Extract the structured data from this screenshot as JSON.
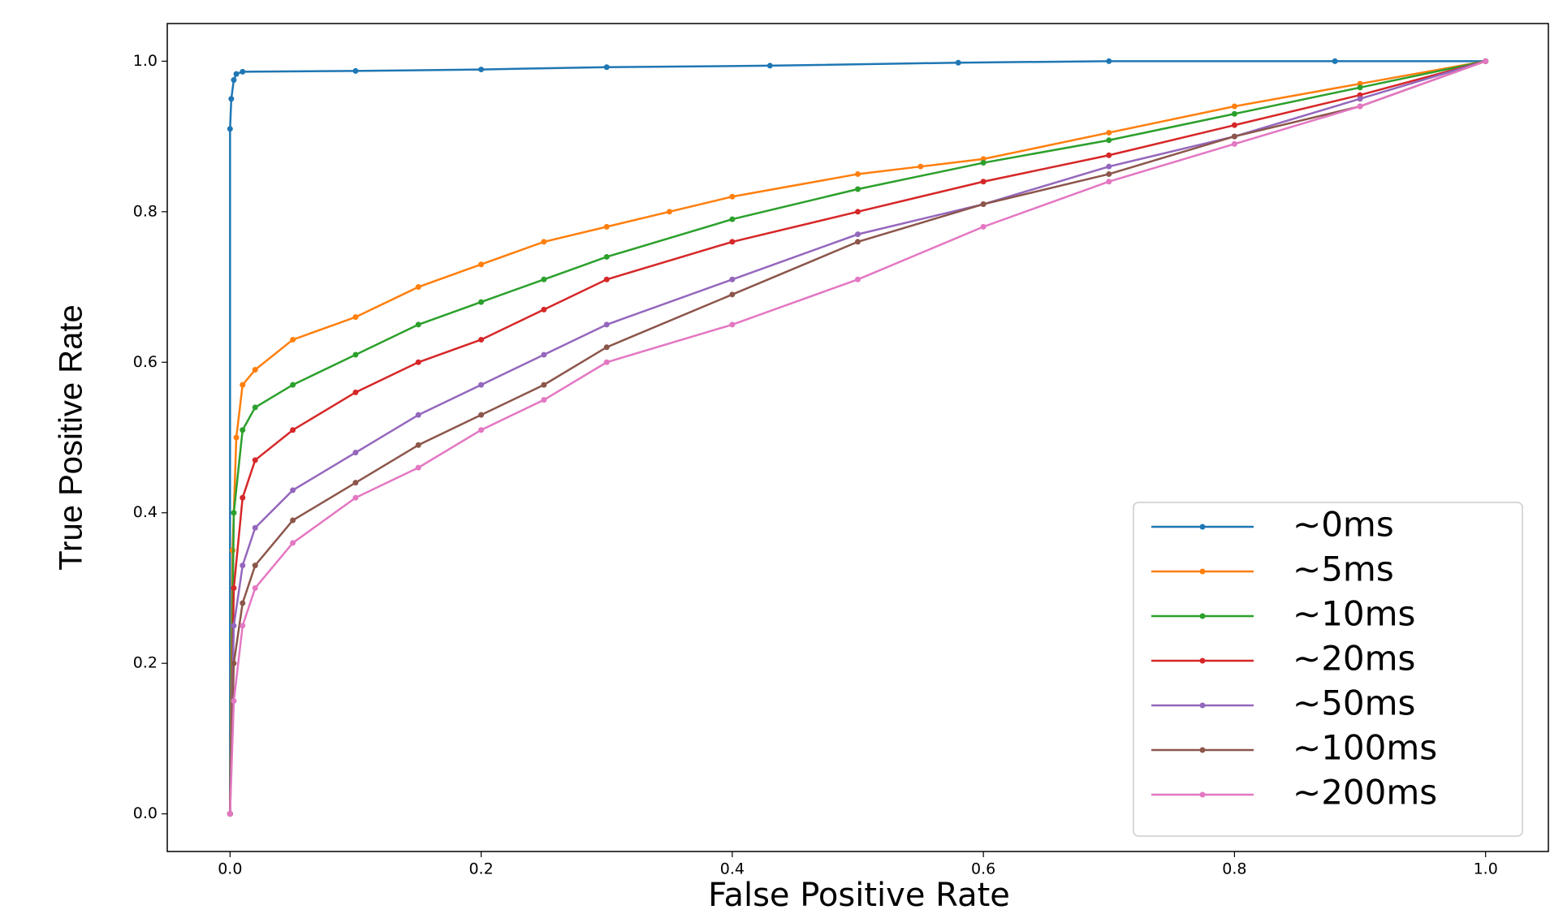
{
  "chart_data": {
    "type": "line",
    "xlabel": "False Positive Rate",
    "ylabel": "True Positive Rate",
    "xlim": [
      -0.05,
      1.05
    ],
    "ylim": [
      -0.05,
      1.05
    ],
    "xticks": [
      {
        "value": 0,
        "label": "0.0"
      },
      0.2,
      0.4,
      0.6,
      0.8,
      {
        "value": 1,
        "label": "1.0"
      }
    ],
    "yticks": [
      {
        "value": 0,
        "label": "0.0"
      },
      0.2,
      0.4,
      0.6,
      0.8,
      {
        "value": 1,
        "label": "1.0"
      }
    ],
    "legend": "lower right",
    "series": [
      {
        "name": "∼0ms",
        "color": "#1f77b4",
        "x": [
          0,
          0,
          0.001,
          0.003,
          0.005,
          0.01,
          0.1,
          0.2,
          0.3,
          0.43,
          0.58,
          0.7,
          0.88,
          1.0
        ],
        "values": [
          0,
          0.91,
          0.95,
          0.975,
          0.983,
          0.986,
          0.987,
          0.989,
          0.992,
          0.994,
          0.998,
          1.0,
          1.0,
          1.0
        ]
      },
      {
        "name": "∼5ms",
        "color": "#ff7f0e",
        "x": [
          0,
          0.002,
          0.005,
          0.01,
          0.02,
          0.05,
          0.1,
          0.15,
          0.2,
          0.25,
          0.3,
          0.35,
          0.4,
          0.5,
          0.55,
          0.6,
          0.7,
          0.8,
          0.9,
          1.0
        ],
        "values": [
          0,
          0.35,
          0.5,
          0.57,
          0.59,
          0.63,
          0.66,
          0.7,
          0.73,
          0.76,
          0.78,
          0.8,
          0.82,
          0.85,
          0.86,
          0.87,
          0.905,
          0.94,
          0.97,
          1.0
        ]
      },
      {
        "name": "∼10ms",
        "color": "#2ca02c",
        "x": [
          0,
          0.003,
          0.01,
          0.02,
          0.05,
          0.1,
          0.15,
          0.2,
          0.25,
          0.3,
          0.4,
          0.5,
          0.6,
          0.7,
          0.8,
          0.9,
          1.0
        ],
        "values": [
          0,
          0.4,
          0.51,
          0.54,
          0.57,
          0.61,
          0.65,
          0.68,
          0.71,
          0.74,
          0.79,
          0.83,
          0.865,
          0.895,
          0.93,
          0.965,
          1.0
        ]
      },
      {
        "name": "∼20ms",
        "color": "#d62728",
        "x": [
          0,
          0.003,
          0.01,
          0.02,
          0.05,
          0.1,
          0.15,
          0.2,
          0.25,
          0.3,
          0.4,
          0.5,
          0.6,
          0.7,
          0.8,
          0.9,
          1.0
        ],
        "values": [
          0,
          0.3,
          0.42,
          0.47,
          0.51,
          0.56,
          0.6,
          0.63,
          0.67,
          0.71,
          0.76,
          0.8,
          0.84,
          0.875,
          0.915,
          0.955,
          1.0
        ]
      },
      {
        "name": "∼50ms",
        "color": "#9467bd",
        "x": [
          0,
          0.003,
          0.01,
          0.02,
          0.05,
          0.1,
          0.15,
          0.2,
          0.25,
          0.3,
          0.4,
          0.5,
          0.6,
          0.7,
          0.8,
          0.9,
          1.0
        ],
        "values": [
          0,
          0.25,
          0.33,
          0.38,
          0.43,
          0.48,
          0.53,
          0.57,
          0.61,
          0.65,
          0.71,
          0.77,
          0.81,
          0.86,
          0.9,
          0.95,
          1.0
        ]
      },
      {
        "name": "∼100ms",
        "color": "#8c564b",
        "x": [
          0,
          0.003,
          0.01,
          0.02,
          0.05,
          0.1,
          0.15,
          0.2,
          0.25,
          0.3,
          0.4,
          0.5,
          0.6,
          0.7,
          0.8,
          0.9,
          1.0
        ],
        "values": [
          0,
          0.2,
          0.28,
          0.33,
          0.39,
          0.44,
          0.49,
          0.53,
          0.57,
          0.62,
          0.69,
          0.76,
          0.81,
          0.85,
          0.9,
          0.94,
          1.0
        ]
      },
      {
        "name": "∼200ms",
        "color": "#e377c2",
        "x": [
          0,
          0.003,
          0.01,
          0.02,
          0.05,
          0.1,
          0.15,
          0.2,
          0.25,
          0.3,
          0.4,
          0.5,
          0.6,
          0.7,
          0.8,
          0.9,
          1.0
        ],
        "values": [
          0,
          0.15,
          0.25,
          0.3,
          0.36,
          0.42,
          0.46,
          0.51,
          0.55,
          0.6,
          0.65,
          0.71,
          0.78,
          0.84,
          0.89,
          0.94,
          1.0
        ]
      }
    ]
  }
}
